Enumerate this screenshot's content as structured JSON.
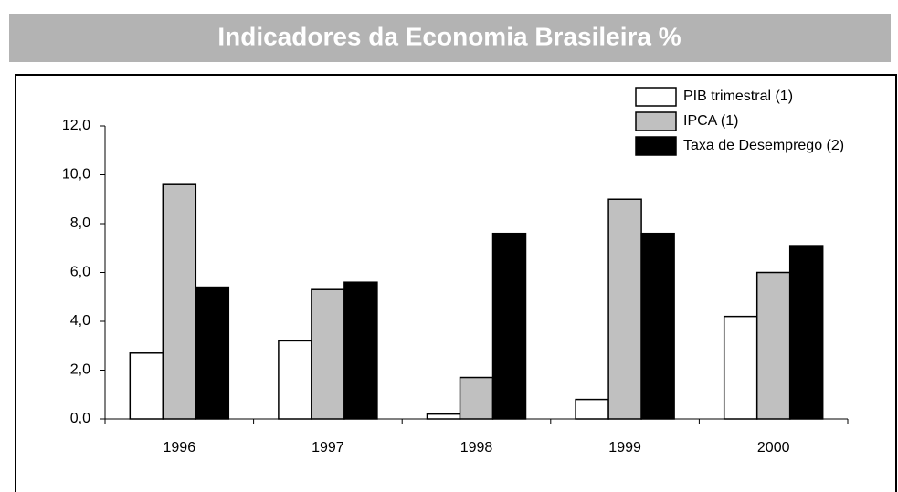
{
  "chart_data": {
    "type": "bar",
    "title": "Indicadores da Economia Brasileira %",
    "categories": [
      "1996",
      "1997",
      "1998",
      "1999",
      "2000"
    ],
    "series": [
      {
        "name": "PIB trimestral (1)",
        "color": "#ffffff",
        "values": [
          2.7,
          3.2,
          0.2,
          0.8,
          4.2
        ]
      },
      {
        "name": "IPCA (1)",
        "color": "#c0c0c0",
        "values": [
          9.6,
          5.3,
          1.7,
          9.0,
          6.0
        ]
      },
      {
        "name": "Taxa de Desemprego (2)",
        "color": "#000000",
        "values": [
          5.4,
          5.6,
          7.6,
          7.6,
          7.1
        ]
      }
    ],
    "ylim": [
      0,
      12
    ],
    "yticks": [
      {
        "value": 0,
        "label": "0,0"
      },
      {
        "value": 2,
        "label": "2,0"
      },
      {
        "value": 4,
        "label": "4,0"
      },
      {
        "value": 6,
        "label": "6,0"
      },
      {
        "value": 8,
        "label": "8,0"
      },
      {
        "value": 10,
        "label": "10,0"
      },
      {
        "value": 12,
        "label": "12,0"
      }
    ],
    "grid": false,
    "legend": "top-right"
  }
}
